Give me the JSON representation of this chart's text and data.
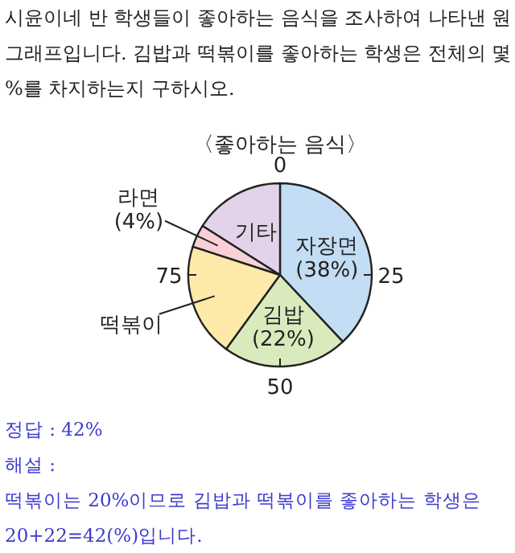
{
  "chart_data": {
    "type": "pie",
    "title": "〈좋아하는 음식〉",
    "categories": [
      "자장면",
      "김밥",
      "떡볶이",
      "라면",
      "기타"
    ],
    "values": [
      38,
      22,
      20,
      4,
      16
    ],
    "value_labels": [
      "(38%)",
      "(22%)",
      null,
      "(4%)",
      null
    ],
    "colors": [
      "#c2ddf4",
      "#d9ebbd",
      "#fdeaa9",
      "#f8d0d6",
      "#e2d2ea"
    ],
    "annotations": [
      "0",
      "25",
      "50",
      "75",
      "시윤이네 반 학생들이 좋아하는 음식을 조사하여 나타낸 원그래프입니다. 김밥과 떡볶이를 좋아하는 학생은 전체의 몇 %를 차지하는지 구하시오.",
      "정답 : 42%",
      "해설 :",
      "떡볶이는 20%이므로 김밥과 떡볶이를 좋아하는 학생은 20+22=42(%)입니다."
    ]
  }
}
